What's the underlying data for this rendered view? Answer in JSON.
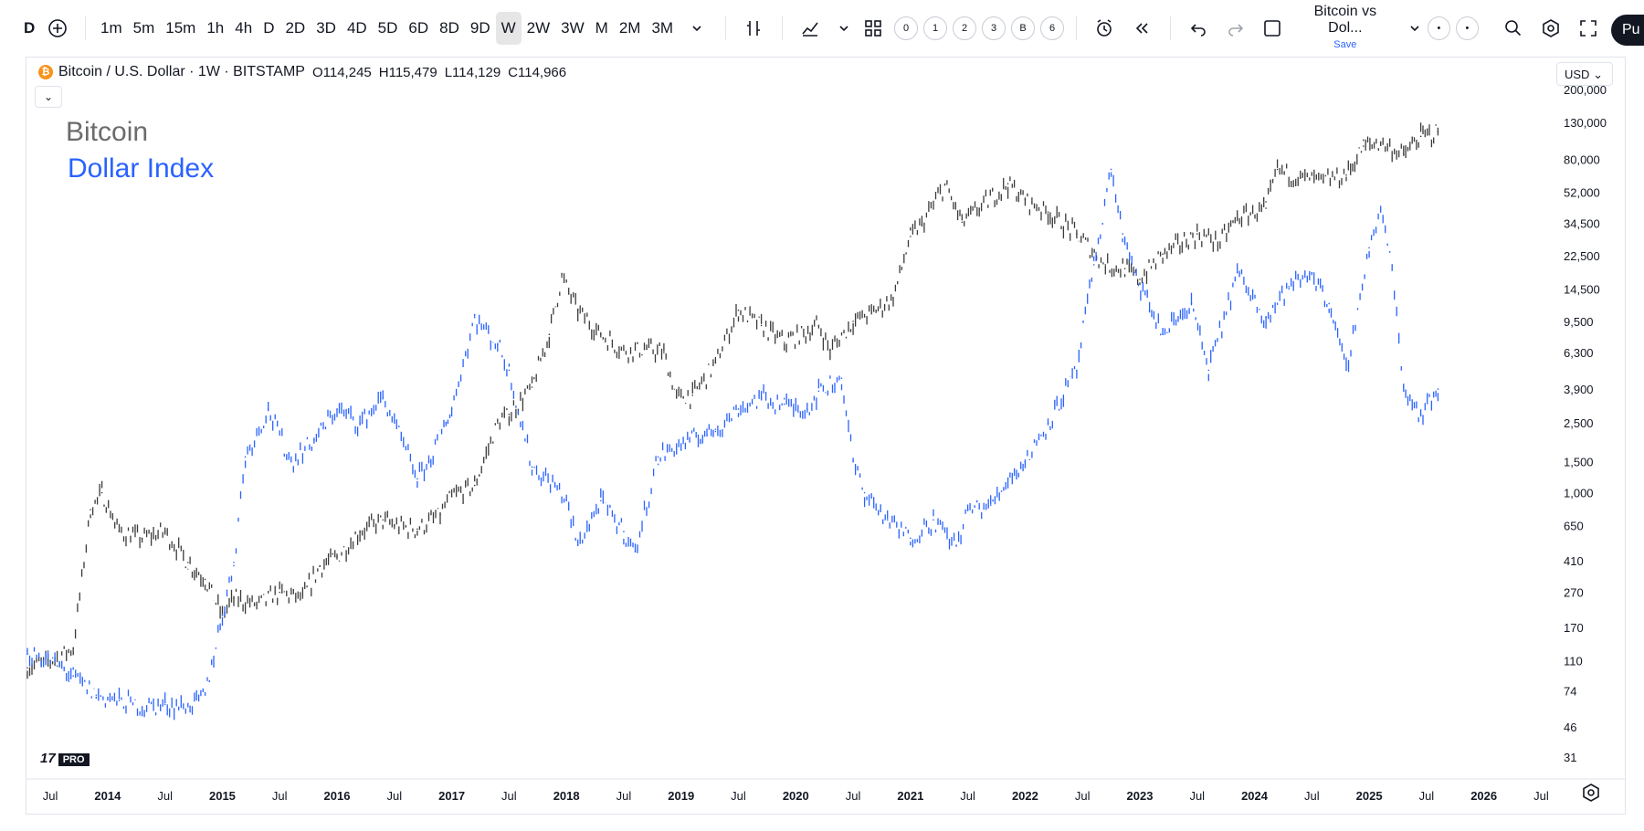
{
  "toolbar": {
    "symbol_prefix": "D",
    "intervals": [
      "1m",
      "5m",
      "15m",
      "1h",
      "4h",
      "D",
      "2D",
      "3D",
      "4D",
      "5D",
      "6D",
      "8D",
      "9D",
      "W",
      "2W",
      "3W",
      "M",
      "2M",
      "3M"
    ],
    "active_interval": "W",
    "layout_buttons": [
      "0",
      "1",
      "2",
      "3",
      "B",
      "6"
    ],
    "layout_name": "Bitcoin vs Dol...",
    "layout_save": "Save",
    "publish_label": "Pu"
  },
  "header": {
    "symbol_title": "Bitcoin / U.S. Dollar · 1W · BITSTAMP",
    "coin_glyph": "₿",
    "open_label": "O",
    "open": "114,245",
    "high_label": "H",
    "high": "115,479",
    "low_label": "L",
    "low": "114,129",
    "close_label": "C",
    "close": "114,966",
    "collapse_glyph": "⌄",
    "currency": "USD"
  },
  "logo": {
    "text": "17",
    "badge": "PRO"
  },
  "colors": {
    "bitcoin": "#3a3a3a",
    "dollar_index": "#2962ff",
    "legend_bitcoin": "#6b6b6b",
    "grid_border": "#e0e3eb"
  },
  "icons": [
    "add-symbol-icon",
    "indicators-icon",
    "compare-icon",
    "layout-icon",
    "alert-icon",
    "replay-icon",
    "undo-icon",
    "redo-icon",
    "layout-square-icon",
    "search-icon",
    "settings-icon",
    "fullscreen-icon",
    "camera-icon",
    "gear-icon"
  ],
  "chart_data": {
    "type": "line",
    "x_axis_labels": [
      "Jul",
      "2014",
      "Jul",
      "2015",
      "Jul",
      "2016",
      "Jul",
      "2017",
      "Jul",
      "2018",
      "Jul",
      "2019",
      "Jul",
      "2020",
      "Jul",
      "2021",
      "Jul",
      "2022",
      "Jul",
      "2023",
      "Jul",
      "2024",
      "Jul",
      "2025",
      "Jul",
      "2026",
      "Jul"
    ],
    "x_axis_dates": [
      2013.5,
      2014.0,
      2014.5,
      2015.0,
      2015.5,
      2016.0,
      2016.5,
      2017.0,
      2017.5,
      2018.0,
      2018.5,
      2019.0,
      2019.5,
      2020.0,
      2020.5,
      2021.0,
      2021.5,
      2022.0,
      2022.5,
      2023.0,
      2023.5,
      2024.0,
      2024.5,
      2025.0,
      2025.5,
      2026.0,
      2026.5
    ],
    "y_axis_labels": [
      "200,000",
      "130,000",
      "80,000",
      "52,000",
      "34,500",
      "22,500",
      "14,500",
      "9,500",
      "6,300",
      "3,900",
      "2,500",
      "1,500",
      "1,000",
      "650",
      "410",
      "270",
      "170",
      "110",
      "74",
      "46",
      "31"
    ],
    "y_axis_values": [
      200000,
      130000,
      80000,
      52000,
      34500,
      22500,
      14500,
      9500,
      6300,
      3900,
      2500,
      1500,
      1000,
      650,
      410,
      270,
      170,
      110,
      74,
      46,
      31
    ],
    "y_scale": "log",
    "x_range": [
      2013.3,
      2026.6
    ],
    "legend_placement": "top-left",
    "series": [
      {
        "name": "Bitcoin",
        "x": [
          2013.3,
          2013.5,
          2013.7,
          2013.85,
          2013.95,
          2014.1,
          2014.3,
          2014.5,
          2014.7,
          2014.85,
          2015.0,
          2015.1,
          2015.3,
          2015.5,
          2015.7,
          2015.85,
          2016.0,
          2016.2,
          2016.4,
          2016.5,
          2016.7,
          2016.9,
          2017.0,
          2017.2,
          2017.4,
          2017.5,
          2017.7,
          2017.85,
          2017.96,
          2018.1,
          2018.3,
          2018.5,
          2018.7,
          2018.85,
          2018.96,
          2019.1,
          2019.3,
          2019.5,
          2019.7,
          2019.9,
          2020.2,
          2020.3,
          2020.5,
          2020.7,
          2020.85,
          2021.0,
          2021.1,
          2021.3,
          2021.45,
          2021.6,
          2021.85,
          2022.0,
          2022.2,
          2022.45,
          2022.7,
          2022.87,
          2023.0,
          2023.2,
          2023.5,
          2023.7,
          2023.85,
          2024.1,
          2024.2,
          2024.4,
          2024.6,
          2024.8,
          2024.95,
          2025.1,
          2025.3,
          2025.45,
          2025.6
        ],
        "y": [
          100,
          110,
          130,
          800,
          1000,
          600,
          550,
          600,
          400,
          320,
          200,
          250,
          230,
          270,
          250,
          380,
          430,
          600,
          700,
          650,
          620,
          750,
          950,
          1100,
          2500,
          2800,
          4000,
          8000,
          17000,
          11000,
          8000,
          6500,
          6600,
          6300,
          3500,
          3600,
          5500,
          11000,
          9000,
          7200,
          9000,
          6500,
          9500,
          11000,
          13000,
          29000,
          34000,
          57000,
          35000,
          42000,
          58000,
          47000,
          40000,
          30000,
          20000,
          19000,
          16500,
          23000,
          30000,
          27000,
          37000,
          42000,
          70000,
          63000,
          60000,
          65000,
          95000,
          100000,
          85000,
          108000,
          115000
        ]
      },
      {
        "name": "Dollar Index",
        "x": [
          2013.3,
          2013.5,
          2013.7,
          2013.9,
          2014.1,
          2014.3,
          2014.5,
          2014.7,
          2014.85,
          2015.0,
          2015.1,
          2015.2,
          2015.4,
          2015.6,
          2015.8,
          2016.0,
          2016.2,
          2016.4,
          2016.5,
          2016.7,
          2016.8,
          2016.95,
          2017.0,
          2017.2,
          2017.4,
          2017.5,
          2017.7,
          2017.9,
          2018.0,
          2018.1,
          2018.3,
          2018.5,
          2018.6,
          2018.8,
          2019.0,
          2019.3,
          2019.5,
          2019.7,
          2019.9,
          2020.1,
          2020.2,
          2020.4,
          2020.5,
          2020.6,
          2020.8,
          2021.0,
          2021.2,
          2021.4,
          2021.5,
          2021.7,
          2021.85,
          2022.0,
          2022.2,
          2022.45,
          2022.6,
          2022.75,
          2022.85,
          2022.95,
          2023.2,
          2023.45,
          2023.6,
          2023.85,
          2024.1,
          2024.3,
          2024.5,
          2024.65,
          2024.8,
          2025.0,
          2025.1,
          2025.2,
          2025.3,
          2025.45,
          2025.6
        ],
        "y": [
          120,
          110,
          90,
          70,
          65,
          60,
          62,
          60,
          70,
          200,
          400,
          1600,
          3000,
          1500,
          2000,
          3000,
          2500,
          3500,
          2500,
          1200,
          1500,
          2500,
          3000,
          10000,
          7000,
          5000,
          1400,
          1100,
          900,
          500,
          900,
          600,
          460,
          1600,
          1900,
          2300,
          3000,
          3500,
          3200,
          3000,
          3800,
          4500,
          1500,
          1000,
          700,
          550,
          700,
          500,
          800,
          850,
          1200,
          1500,
          2500,
          5000,
          20000,
          70000,
          30000,
          18000,
          8000,
          12000,
          5000,
          18000,
          10000,
          15000,
          18000,
          12000,
          5000,
          25000,
          40000,
          20000,
          4000,
          2800,
          3900
        ]
      }
    ]
  }
}
